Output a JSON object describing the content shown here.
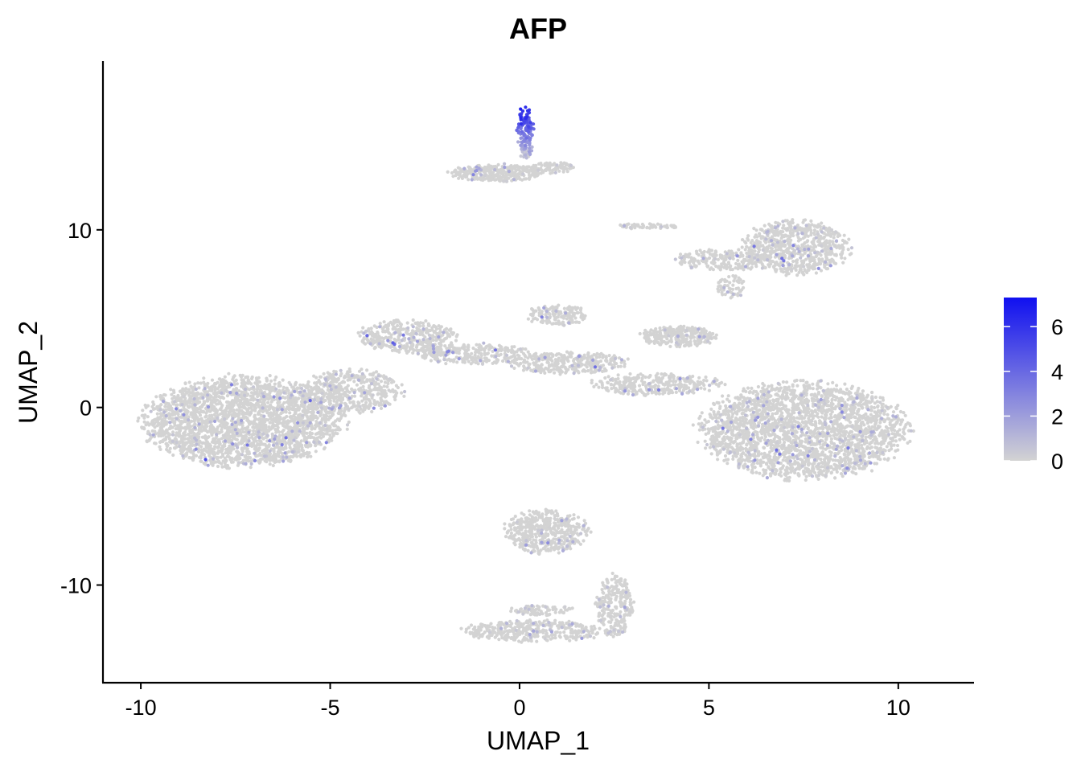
{
  "chart_data": {
    "type": "scatter",
    "title": "AFP",
    "xlabel": "UMAP_1",
    "ylabel": "UMAP_2",
    "xlim": [
      -11,
      12
    ],
    "ylim": [
      -15.5,
      19.5
    ],
    "x_ticks": [
      -10,
      -5,
      0,
      5,
      10
    ],
    "x_tick_labels": [
      "-10",
      "-5",
      "0",
      "5",
      "10"
    ],
    "y_ticks": [
      -10,
      0,
      10
    ],
    "y_tick_labels": [
      "-10",
      "0",
      "10"
    ],
    "grid": false,
    "legend": {
      "placement": "right",
      "type": "colorbar",
      "min": 0,
      "max": 7.3,
      "ticks": [
        0,
        2,
        4,
        6
      ],
      "tick_labels": [
        "0",
        "2",
        "4",
        "6"
      ]
    },
    "colors": {
      "low": "#d3d3d3",
      "high": "#1010f0"
    },
    "clusters": [
      {
        "name": "left-mass",
        "cx": -7.3,
        "cy": -0.8,
        "rx": 2.6,
        "ry": 2.5,
        "n": 2600,
        "expr_base": 0.5
      },
      {
        "name": "left-neck",
        "cx": -4.4,
        "cy": 0.9,
        "rx": 1.3,
        "ry": 1.2,
        "n": 450,
        "expr_base": 0.4
      },
      {
        "name": "upper-arm",
        "cx": -3.0,
        "cy": 4.0,
        "rx": 1.3,
        "ry": 0.9,
        "n": 380,
        "expr_base": 0.5
      },
      {
        "name": "bridge-left",
        "cx": -1.2,
        "cy": 3.0,
        "rx": 1.5,
        "ry": 0.6,
        "n": 300,
        "expr_base": 0.6
      },
      {
        "name": "bridge-top",
        "cx": 1.0,
        "cy": 5.2,
        "rx": 0.8,
        "ry": 0.6,
        "n": 150,
        "expr_base": 0.4
      },
      {
        "name": "bridge-mid",
        "cx": 1.3,
        "cy": 2.5,
        "rx": 1.6,
        "ry": 0.6,
        "n": 330,
        "expr_base": 0.5
      },
      {
        "name": "bridge-right",
        "cx": 3.6,
        "cy": 1.3,
        "rx": 1.7,
        "ry": 0.6,
        "n": 330,
        "expr_base": 0.4
      },
      {
        "name": "right-mass",
        "cx": 7.5,
        "cy": -1.3,
        "rx": 2.7,
        "ry": 2.7,
        "n": 2800,
        "expr_base": 0.4
      },
      {
        "name": "small-oval",
        "cx": 4.2,
        "cy": 4.0,
        "rx": 1.0,
        "ry": 0.6,
        "n": 280,
        "expr_base": 0.3
      },
      {
        "name": "upper-right-mass",
        "cx": 7.3,
        "cy": 9.0,
        "rx": 1.4,
        "ry": 1.5,
        "n": 700,
        "expr_base": 0.4
      },
      {
        "name": "upper-right-arm",
        "cx": 5.3,
        "cy": 8.3,
        "rx": 1.2,
        "ry": 0.6,
        "n": 220,
        "expr_base": 0.3
      },
      {
        "name": "upper-right-tail",
        "cx": 5.6,
        "cy": 6.8,
        "rx": 0.4,
        "ry": 0.7,
        "n": 60,
        "expr_base": 0.2
      },
      {
        "name": "upper-right-streak",
        "cx": 3.4,
        "cy": 10.2,
        "rx": 0.9,
        "ry": 0.15,
        "n": 60,
        "expr_base": 0.2
      },
      {
        "name": "top-island",
        "cx": -0.6,
        "cy": 13.2,
        "rx": 1.2,
        "ry": 0.5,
        "n": 320,
        "expr_base": 0.4
      },
      {
        "name": "top-island-right",
        "cx": 0.9,
        "cy": 13.5,
        "rx": 0.6,
        "ry": 0.3,
        "n": 90,
        "expr_base": 0.3
      },
      {
        "name": "top-island-peak",
        "cx": 0.15,
        "cy": 15.4,
        "rx": 0.22,
        "ry": 1.5,
        "n": 150,
        "expr_base": 4.0
      },
      {
        "name": "bottom-upper-blob",
        "cx": 0.7,
        "cy": -7.0,
        "rx": 1.1,
        "ry": 1.2,
        "n": 480,
        "expr_base": 0.3
      },
      {
        "name": "bottom-right-hook",
        "cx": 2.5,
        "cy": -11.2,
        "rx": 0.5,
        "ry": 1.8,
        "n": 260,
        "expr_base": 0.3
      },
      {
        "name": "bottom-lower-band",
        "cx": 0.4,
        "cy": -12.6,
        "rx": 1.9,
        "ry": 0.6,
        "n": 380,
        "expr_base": 0.4
      },
      {
        "name": "bottom-spur",
        "cx": 0.6,
        "cy": -11.4,
        "rx": 0.8,
        "ry": 0.3,
        "n": 80,
        "expr_base": 0.3
      }
    ]
  }
}
